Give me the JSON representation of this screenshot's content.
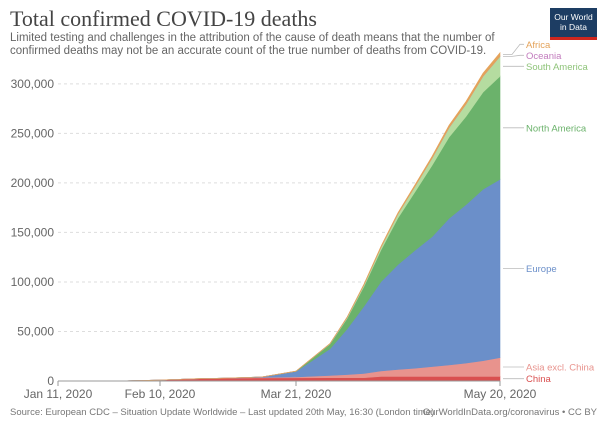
{
  "header": {
    "title": "Total confirmed COVID-19 deaths",
    "subtitle": "Limited testing and challenges in the attribution of the cause of death means that the number of confirmed deaths may not be an accurate count of the true number of deaths from COVID-19."
  },
  "logo": {
    "line1": "Our World",
    "line2": "in Data"
  },
  "footer": {
    "source": "Source: European CDC – Situation Update Worldwide – Last updated 20th May, 16:30 (London time)",
    "credit": "OurWorldInData.org/coronavirus • CC BY"
  },
  "chart_data": {
    "type": "area",
    "stacked": true,
    "x": [
      "2020-01-11",
      "2020-01-21",
      "2020-01-31",
      "2020-02-10",
      "2020-02-20",
      "2020-03-01",
      "2020-03-11",
      "2020-03-21",
      "2020-03-31",
      "2020-04-05",
      "2020-04-10",
      "2020-04-15",
      "2020-04-20",
      "2020-04-25",
      "2020-04-30",
      "2020-05-05",
      "2020-05-10",
      "2020-05-15",
      "2020-05-20"
    ],
    "x_ticks": [
      "Jan 11, 2020",
      "Feb 10, 2020",
      "Mar 21, 2020",
      "May 20, 2020"
    ],
    "y_ticks": [
      0,
      50000,
      100000,
      150000,
      200000,
      250000,
      300000
    ],
    "y_tick_labels": [
      "0",
      "50,000",
      "100,000",
      "150,000",
      "200,000",
      "250,000",
      "300,000"
    ],
    "ylim": [
      0,
      320000
    ],
    "grid": "horizontal",
    "legend": "right-inline",
    "series": [
      {
        "name": "China",
        "color": "#d94f4f",
        "values": [
          0,
          9,
          210,
          1000,
          2240,
          2870,
          3160,
          3260,
          3310,
          3330,
          3340,
          4630,
          4640,
          4640,
          4640,
          4640,
          4640,
          4640,
          4640
        ]
      },
      {
        "name": "Asia excl. China",
        "color": "#e8938d",
        "values": [
          0,
          0,
          0,
          0,
          0,
          10,
          330,
          900,
          2200,
          3100,
          4200,
          5600,
          7000,
          8300,
          9900,
          11500,
          13400,
          15900,
          19000
        ]
      },
      {
        "name": "Europe",
        "color": "#6b8fc9",
        "values": [
          0,
          0,
          0,
          0,
          0,
          20,
          600,
          5400,
          27000,
          46000,
          68000,
          90000,
          106000,
          119000,
          131000,
          148000,
          160000,
          173000,
          180000
        ]
      },
      {
        "name": "North America",
        "color": "#6bb26b",
        "values": [
          0,
          0,
          0,
          0,
          0,
          0,
          30,
          330,
          4700,
          10500,
          20000,
          32000,
          47000,
          59000,
          72000,
          82000,
          89000,
          98000,
          104000
        ]
      },
      {
        "name": "South America",
        "color": "#b5dca0",
        "values": [
          0,
          0,
          0,
          0,
          0,
          0,
          0,
          40,
          400,
          1000,
          1600,
          2800,
          4000,
          5500,
          7200,
          9500,
          12500,
          16000,
          20000
        ]
      },
      {
        "name": "Oceania",
        "color": "#c27bbd",
        "values": [
          0,
          0,
          0,
          0,
          0,
          0,
          0,
          10,
          20,
          40,
          60,
          80,
          100,
          120,
          130,
          130,
          130,
          130,
          130
        ]
      },
      {
        "name": "Africa",
        "color": "#e4a35a",
        "values": [
          0,
          0,
          0,
          0,
          0,
          0,
          10,
          40,
          200,
          400,
          700,
          1000,
          1200,
          1500,
          1900,
          2300,
          2600,
          3000,
          3600
        ]
      }
    ]
  }
}
